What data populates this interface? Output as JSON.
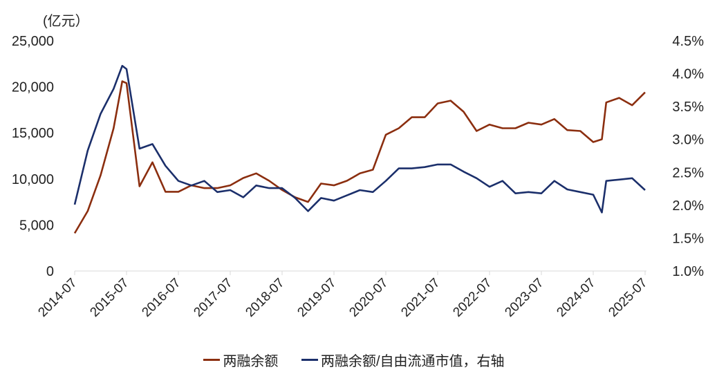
{
  "chart_data": {
    "type": "line",
    "title": "",
    "unit_label": "(亿元）",
    "xlabel": "",
    "ylabel_left": "亿元",
    "ylabel_right": "",
    "x_tick_labels": [
      "2014-07",
      "2015-07",
      "2016-07",
      "2017-07",
      "2018-07",
      "2019-07",
      "2020-07",
      "2021-07",
      "2022-07",
      "2023-07",
      "2024-07",
      "2025-07"
    ],
    "y_left": {
      "ticks": [
        0,
        5000,
        10000,
        15000,
        20000,
        25000
      ],
      "tick_labels": [
        "0",
        "5,000",
        "10,000",
        "15,000",
        "20,000",
        "25,000"
      ],
      "range": [
        0,
        25000
      ]
    },
    "y_right": {
      "ticks": [
        1.0,
        1.5,
        2.0,
        2.5,
        3.0,
        3.5,
        4.0,
        4.5
      ],
      "tick_labels": [
        "1.0%",
        "1.5%",
        "2.0%",
        "2.5%",
        "3.0%",
        "3.5%",
        "4.0%",
        "4.5%"
      ],
      "range": [
        1.0,
        4.5
      ]
    },
    "grid": false,
    "legend_position": "bottom",
    "x": [
      "2014-07",
      "2014-10",
      "2015-01",
      "2015-04",
      "2015-06",
      "2015-07",
      "2015-10",
      "2016-01",
      "2016-04",
      "2016-07",
      "2016-10",
      "2017-01",
      "2017-04",
      "2017-07",
      "2017-10",
      "2018-01",
      "2018-04",
      "2018-07",
      "2018-10",
      "2019-01",
      "2019-04",
      "2019-07",
      "2019-10",
      "2020-01",
      "2020-04",
      "2020-07",
      "2020-10",
      "2021-01",
      "2021-04",
      "2021-07",
      "2021-10",
      "2022-01",
      "2022-04",
      "2022-07",
      "2022-10",
      "2023-01",
      "2023-04",
      "2023-07",
      "2023-10",
      "2024-01",
      "2024-04",
      "2024-07",
      "2024-09",
      "2024-10",
      "2025-01",
      "2025-04",
      "2025-07"
    ],
    "series": [
      {
        "name": "两融余额",
        "axis": "left",
        "color": "#8B2E0F",
        "values": [
          4100,
          6500,
          10400,
          15500,
          20600,
          20400,
          9200,
          11800,
          8600,
          8600,
          9300,
          9000,
          9000,
          9300,
          10100,
          10600,
          9800,
          8800,
          8000,
          7500,
          9500,
          9300,
          9800,
          10600,
          11000,
          14800,
          15500,
          16700,
          16700,
          18200,
          18500,
          17300,
          15200,
          15900,
          15500,
          15500,
          16100,
          15900,
          16500,
          15300,
          15200,
          14000,
          14300,
          18300,
          18800,
          18000,
          19400
        ]
      },
      {
        "name": "两融余额/自由流通市值，右轴",
        "axis": "right",
        "color": "#1B2F6B",
        "values": [
          2.01,
          2.83,
          3.39,
          3.77,
          4.12,
          4.07,
          2.86,
          2.93,
          2.6,
          2.37,
          2.3,
          2.37,
          2.2,
          2.23,
          2.12,
          2.3,
          2.26,
          2.26,
          2.11,
          1.91,
          2.11,
          2.07,
          2.15,
          2.23,
          2.2,
          2.37,
          2.56,
          2.56,
          2.58,
          2.62,
          2.62,
          2.51,
          2.41,
          2.28,
          2.37,
          2.18,
          2.2,
          2.18,
          2.37,
          2.24,
          2.2,
          2.16,
          1.89,
          2.37,
          2.39,
          2.41,
          2.23
        ]
      }
    ]
  },
  "legend": {
    "items": [
      {
        "label": "两融余额",
        "color": "#8B2E0F"
      },
      {
        "label": "两融余额/自由流通市值，右轴",
        "color": "#1B2F6B"
      }
    ]
  }
}
